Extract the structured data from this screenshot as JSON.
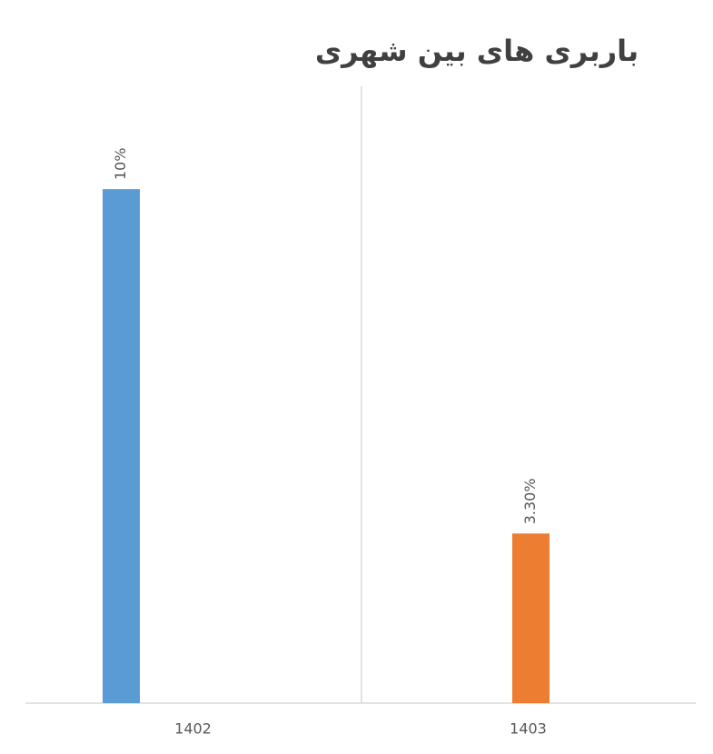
{
  "chart_data": {
    "type": "bar",
    "title": "باربری های بین شهری",
    "categories": [
      "1402",
      "1403"
    ],
    "values": [
      10,
      3.3
    ],
    "value_labels": [
      "10%",
      "3.30%"
    ],
    "colors": [
      "#5b9bd5",
      "#ed7d31"
    ],
    "ylim": [
      0,
      12
    ],
    "grid": false
  }
}
